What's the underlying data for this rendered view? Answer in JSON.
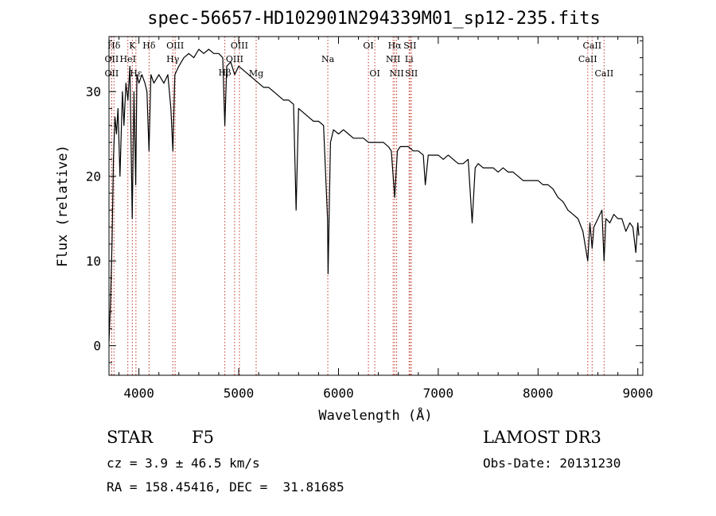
{
  "chart_data": {
    "type": "line",
    "title": "spec-56657-HD102901N294339M01_sp12-235.fits",
    "xlabel": "Wavelength (Å)",
    "ylabel": "Flux (relative)",
    "xlim": [
      3700,
      9050
    ],
    "ylim": [
      -3.5,
      36.5
    ],
    "x_ticks": [
      4000,
      5000,
      6000,
      7000,
      8000,
      9000
    ],
    "y_ticks": [
      0,
      10,
      20,
      30
    ],
    "grid": false,
    "series": [
      {
        "name": "Flux",
        "color": "#000000",
        "x": [
          3700,
          3715,
          3730,
          3745,
          3760,
          3775,
          3790,
          3810,
          3835,
          3850,
          3870,
          3890,
          3910,
          3933,
          3950,
          3968,
          3980,
          4000,
          4030,
          4060,
          4080,
          4101,
          4120,
          4150,
          4200,
          4250,
          4290,
          4320,
          4340,
          4360,
          4400,
          4450,
          4500,
          4550,
          4600,
          4650,
          4700,
          4750,
          4800,
          4840,
          4861,
          4880,
          4920,
          4960,
          5000,
          5050,
          5100,
          5150,
          5200,
          5250,
          5300,
          5350,
          5400,
          5450,
          5500,
          5550,
          5575,
          5600,
          5650,
          5700,
          5750,
          5800,
          5850,
          5890,
          5896,
          5920,
          5950,
          6000,
          6050,
          6100,
          6150,
          6200,
          6250,
          6300,
          6350,
          6400,
          6450,
          6500,
          6530,
          6563,
          6590,
          6620,
          6650,
          6700,
          6750,
          6800,
          6850,
          6870,
          6900,
          6950,
          7000,
          7050,
          7100,
          7150,
          7200,
          7250,
          7300,
          7340,
          7370,
          7400,
          7450,
          7500,
          7550,
          7600,
          7650,
          7700,
          7750,
          7800,
          7850,
          7900,
          7950,
          8000,
          8050,
          8100,
          8150,
          8200,
          8250,
          8300,
          8350,
          8400,
          8450,
          8498,
          8520,
          8542,
          8560,
          8600,
          8640,
          8662,
          8680,
          8720,
          8760,
          8800,
          8840,
          8880,
          8920,
          8950,
          8980,
          9000,
          9010
        ],
        "values": [
          0.5,
          5,
          12,
          22,
          27,
          25,
          28,
          20,
          30,
          26,
          31,
          29,
          33,
          15,
          30,
          19,
          32,
          31,
          32,
          31,
          30,
          23,
          32,
          31,
          32,
          31,
          32,
          28,
          23,
          32,
          33,
          34,
          34.5,
          34,
          35,
          34.5,
          35,
          34.5,
          34.5,
          34,
          26,
          33,
          33.5,
          32,
          33,
          32.5,
          32,
          31.5,
          31,
          30.5,
          30.5,
          30,
          29.5,
          29,
          29,
          28.5,
          16,
          28,
          27.5,
          27,
          26.5,
          26.5,
          26,
          15,
          8.5,
          24,
          25.5,
          25,
          25.5,
          25,
          24.5,
          24.5,
          24.5,
          24,
          24,
          24,
          24,
          23.5,
          23,
          17.5,
          23,
          23.5,
          23.5,
          23.5,
          23,
          23,
          22.5,
          19,
          22.5,
          22.5,
          22.5,
          22,
          22.5,
          22,
          21.5,
          21.5,
          22,
          14.5,
          21,
          21.5,
          21,
          21,
          21,
          20.5,
          21,
          20.5,
          20.5,
          20,
          19.5,
          19.5,
          19.5,
          19.5,
          19,
          19,
          18.5,
          17.5,
          17,
          16,
          15.5,
          15,
          13.5,
          10,
          14.5,
          11.5,
          14,
          15,
          16,
          10,
          15,
          14.5,
          15.5,
          15,
          15,
          13.5,
          14.5,
          14,
          11,
          14.5,
          13
        ]
      }
    ],
    "line_markers": [
      {
        "label": "Hδ",
        "x": 3750,
        "row": 1
      },
      {
        "label": "OII",
        "x": 3727,
        "row": 2
      },
      {
        "label": "OII",
        "x": 3727,
        "row": 3
      },
      {
        "label": "K",
        "x": 3934,
        "row": 1
      },
      {
        "label": "HeI",
        "x": 3889,
        "row": 2
      },
      {
        "label": "Hε",
        "x": 3970,
        "row": 3
      },
      {
        "label": "Hδ",
        "x": 4102,
        "row": 1
      },
      {
        "label": "OIII",
        "x": 4363,
        "row": 1
      },
      {
        "label": "Hγ",
        "x": 4340,
        "row": 2
      },
      {
        "label": "Hβ",
        "x": 4861,
        "row": 4
      },
      {
        "label": "OIII",
        "x": 5007,
        "row": 1
      },
      {
        "label": "OIII",
        "x": 4959,
        "row": 2
      },
      {
        "label": "Mg",
        "x": 5175,
        "row": 3
      },
      {
        "label": "Na",
        "x": 5893,
        "row": 2
      },
      {
        "label": "OI",
        "x": 6300,
        "row": 1
      },
      {
        "label": "OI",
        "x": 6364,
        "row": 3
      },
      {
        "label": "Hα",
        "x": 6563,
        "row": 1
      },
      {
        "label": "NII",
        "x": 6548,
        "row": 2
      },
      {
        "label": "NII",
        "x": 6583,
        "row": 3
      },
      {
        "label": "SII",
        "x": 6717,
        "row": 1
      },
      {
        "label": "Li",
        "x": 6708,
        "row": 2
      },
      {
        "label": "SII",
        "x": 6731,
        "row": 3
      },
      {
        "label": "CaII",
        "x": 8542,
        "row": 1
      },
      {
        "label": "CaII",
        "x": 8498,
        "row": 2
      },
      {
        "label": "CaII",
        "x": 8662,
        "row": 3
      }
    ]
  },
  "footer": {
    "object_class": "STAR",
    "subclass": "F5",
    "survey": "LAMOST DR3",
    "redshift_line": "cz = 3.9 ± 46.5 km/s",
    "obs_date": "Obs-Date: 20131230",
    "coords": "RA = 158.45416, DEC =  31.81685"
  }
}
